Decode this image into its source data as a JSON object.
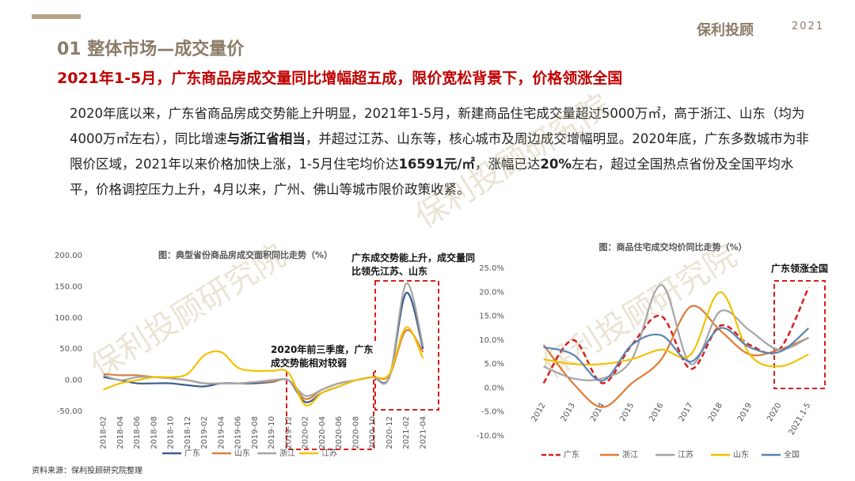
{
  "header": {
    "title": "01 整体市场—成交量价",
    "subtitle": "2021年1-5月，广东商品房成交量同比增幅超五成，限价宽松背景下，价格领涨全国",
    "logo": "保利投顾",
    "logo_year": "2021",
    "watermark": "保利投顾研究院"
  },
  "paragraph": [
    {
      "text": "2020年底以来，广东省商品房成交势能上升明显，2021年1-5月，新建商品住宅成交量超过5000万㎡，高于浙江、山东（均为4000万㎡左右），同比增速",
      "bold": false
    },
    {
      "text": "与浙江省相当",
      "bold": true
    },
    {
      "text": "，并超过江苏、山东等，核心城市及周边成交增幅明显。2020年底，广东多数城市为非限价区域，2021年以来价格加快上涨，1-5月住宅均价达",
      "bold": false
    },
    {
      "text": "16591元/㎡",
      "bold": true
    },
    {
      "text": "，涨幅已达",
      "bold": false
    },
    {
      "text": "20%",
      "bold": true
    },
    {
      "text": "左右，超过全国热点省份及全国平均水平，价格调控压力上升，4月以来，广州、佛山等城市限价政策收紧。",
      "bold": false
    }
  ],
  "source": "资料来源：保利投顾研究院整理",
  "chart_data": [
    {
      "type": "line",
      "title": "图：典型省份商品房成交面积同比走势（%）",
      "annotations": [
        "广东成交势能上升，成交量同比领先江苏、山东",
        "2020年前三季度，广东成交势能相对较弱"
      ],
      "categories": [
        "2018-02",
        "2018-04",
        "2018-06",
        "2018-08",
        "2018-10",
        "2018-12",
        "2019-02",
        "2019-04",
        "2019-06",
        "2019-08",
        "2019-10",
        "2019-12",
        "2020-02",
        "2020-04",
        "2020-06",
        "2020-08",
        "2020-10",
        "2020-12",
        "2021-02",
        "2021-04"
      ],
      "series": [
        {
          "name": "广东",
          "color": "#3b5b8c",
          "line_style": "solid",
          "values": [
            5,
            0,
            -5,
            -5,
            -5,
            -8,
            -10,
            -5,
            -5,
            -5,
            -3,
            0,
            -35,
            -20,
            -10,
            0,
            5,
            5,
            140,
            50
          ]
        },
        {
          "name": "山东",
          "color": "#d9803f",
          "line_style": "solid",
          "values": [
            10,
            8,
            8,
            5,
            3,
            0,
            -5,
            -5,
            -5,
            -3,
            -2,
            0,
            -30,
            -15,
            -5,
            0,
            5,
            8,
            80,
            45
          ]
        },
        {
          "name": "浙江",
          "color": "#a5a5a5",
          "line_style": "solid",
          "values": [
            8,
            0,
            5,
            5,
            3,
            0,
            -5,
            -5,
            -5,
            -3,
            0,
            0,
            -25,
            -15,
            -5,
            0,
            5,
            5,
            155,
            55
          ]
        },
        {
          "name": "江苏",
          "color": "#f2c200",
          "line_style": "solid",
          "values": [
            -15,
            -5,
            0,
            5,
            5,
            10,
            40,
            45,
            20,
            15,
            15,
            12,
            -40,
            -20,
            -10,
            0,
            5,
            10,
            85,
            35
          ]
        }
      ],
      "ylim": [
        -50,
        200
      ],
      "yticks": [
        {
          "value": -50,
          "label": "-50.00"
        },
        {
          "value": 0,
          "label": "0.00"
        },
        {
          "value": 50,
          "label": "50.00"
        },
        {
          "value": 100,
          "label": "100.00"
        },
        {
          "value": 150,
          "label": "150.00"
        },
        {
          "value": 200,
          "label": "200.00"
        }
      ],
      "grid": false
    },
    {
      "type": "line",
      "title": "图：商品住宅成交均价同比走势（%）",
      "annotations": [
        "广东领涨全国"
      ],
      "categories": [
        "2012",
        "2013",
        "2014",
        "2015",
        "2016",
        "2017",
        "2018",
        "2019",
        "2020",
        "2021.1-5"
      ],
      "series": [
        {
          "name": "广东",
          "color": "#d62020",
          "line_style": "dashed",
          "values": [
            1,
            10,
            1,
            9,
            15,
            4,
            13,
            9,
            8,
            21
          ]
        },
        {
          "name": "浙江",
          "color": "#e07b39",
          "line_style": "solid",
          "values": [
            9,
            1,
            -4,
            1,
            6,
            17,
            12,
            7,
            8,
            10.5
          ]
        },
        {
          "name": "江苏",
          "color": "#a5a5a5",
          "line_style": "solid",
          "values": [
            4.5,
            2,
            2,
            6,
            21.5,
            5,
            16,
            12,
            8,
            10.5
          ]
        },
        {
          "name": "山东",
          "color": "#f2c200",
          "line_style": "solid",
          "values": [
            6,
            5,
            5,
            6,
            8,
            7,
            20,
            7,
            4.5,
            7
          ]
        },
        {
          "name": "全国",
          "color": "#5b84b1",
          "line_style": "solid",
          "values": [
            8.5,
            7,
            1.5,
            9,
            11,
            5.5,
            12.5,
            8.5,
            7.5,
            12.5
          ]
        }
      ],
      "ylim": [
        -10,
        25
      ],
      "yticks": [
        {
          "value": -10,
          "label": "-10.0%"
        },
        {
          "value": -5,
          "label": "-5.0%"
        },
        {
          "value": 0,
          "label": "0.0%"
        },
        {
          "value": 5,
          "label": "5.0%"
        },
        {
          "value": 10,
          "label": "10.0%"
        },
        {
          "value": 15,
          "label": "15.0%"
        },
        {
          "value": 20,
          "label": "20.0%"
        },
        {
          "value": 25,
          "label": "25.0%"
        }
      ],
      "grid": false
    }
  ]
}
